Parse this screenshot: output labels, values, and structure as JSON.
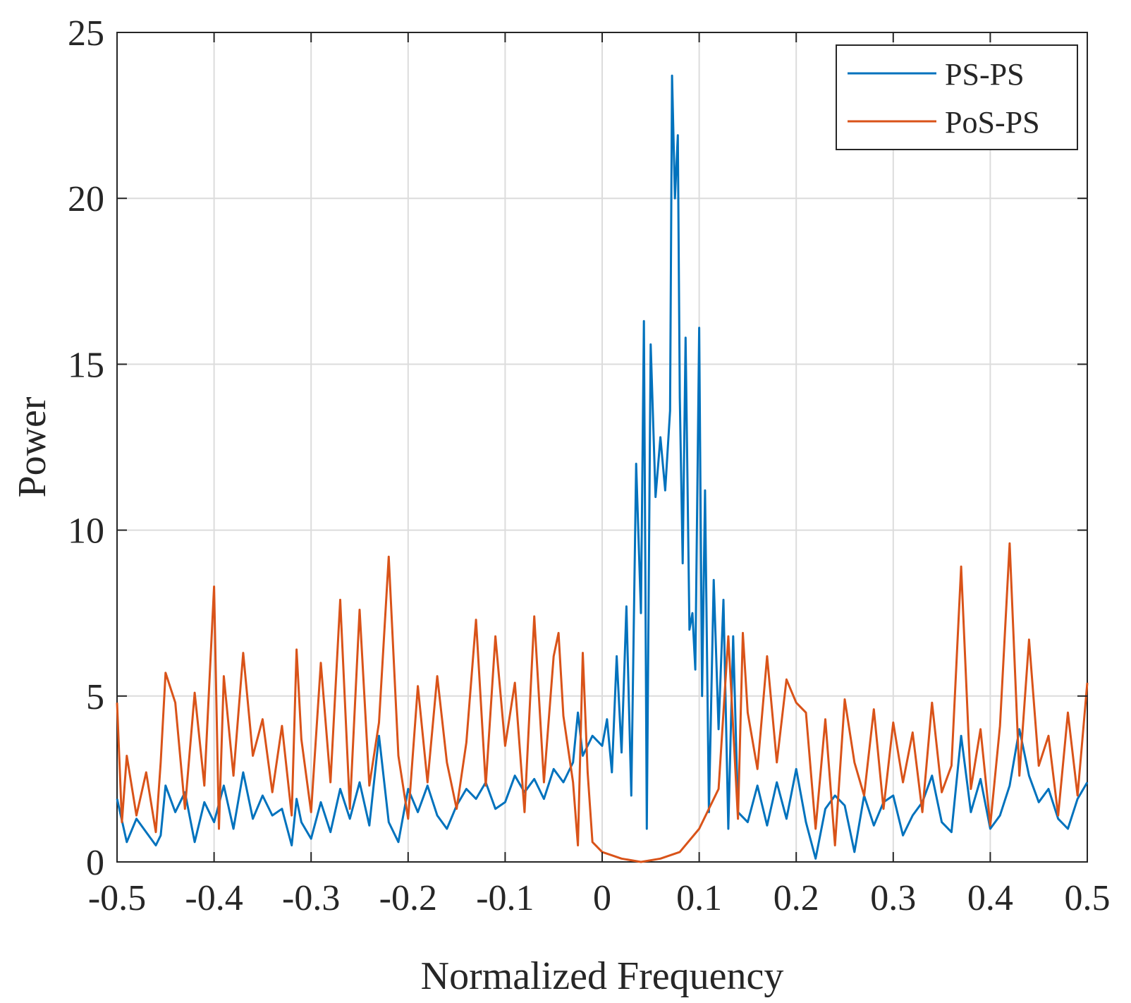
{
  "chart_data": {
    "type": "line",
    "xlabel": "Normalized Frequency",
    "ylabel": "Power",
    "xlim": [
      -0.5,
      0.5
    ],
    "ylim": [
      0,
      25
    ],
    "xticks": [
      -0.5,
      -0.4,
      -0.3,
      -0.2,
      -0.1,
      0,
      0.1,
      0.2,
      0.3,
      0.4,
      0.5
    ],
    "xtick_labels": [
      "-0.5",
      "-0.4",
      "-0.3",
      "-0.2",
      "-0.1",
      "0",
      "0.1",
      "0.2",
      "0.3",
      "0.4",
      "0.5"
    ],
    "yticks": [
      0,
      5,
      10,
      15,
      20,
      25
    ],
    "ytick_labels": [
      "0",
      "5",
      "10",
      "15",
      "20",
      "25"
    ],
    "grid": true,
    "legend_position": "top-right",
    "series": [
      {
        "name": "PS-PS",
        "color": "#0072BD",
        "x": [
          -0.5,
          -0.49,
          -0.48,
          -0.47,
          -0.46,
          -0.455,
          -0.45,
          -0.44,
          -0.43,
          -0.42,
          -0.41,
          -0.4,
          -0.39,
          -0.38,
          -0.37,
          -0.36,
          -0.35,
          -0.34,
          -0.33,
          -0.32,
          -0.315,
          -0.31,
          -0.3,
          -0.29,
          -0.28,
          -0.27,
          -0.26,
          -0.25,
          -0.24,
          -0.23,
          -0.22,
          -0.21,
          -0.2,
          -0.19,
          -0.18,
          -0.17,
          -0.16,
          -0.15,
          -0.14,
          -0.13,
          -0.12,
          -0.11,
          -0.1,
          -0.09,
          -0.08,
          -0.07,
          -0.06,
          -0.05,
          -0.04,
          -0.03,
          -0.025,
          -0.02,
          -0.01,
          0,
          0.005,
          0.01,
          0.015,
          0.02,
          0.025,
          0.03,
          0.035,
          0.04,
          0.043,
          0.046,
          0.05,
          0.055,
          0.06,
          0.065,
          0.07,
          0.072,
          0.075,
          0.078,
          0.08,
          0.083,
          0.086,
          0.09,
          0.093,
          0.096,
          0.1,
          0.103,
          0.106,
          0.11,
          0.115,
          0.12,
          0.125,
          0.13,
          0.135,
          0.14,
          0.15,
          0.16,
          0.17,
          0.18,
          0.19,
          0.2,
          0.21,
          0.22,
          0.23,
          0.24,
          0.25,
          0.26,
          0.27,
          0.28,
          0.29,
          0.3,
          0.31,
          0.32,
          0.33,
          0.34,
          0.35,
          0.36,
          0.37,
          0.38,
          0.39,
          0.4,
          0.41,
          0.42,
          0.43,
          0.44,
          0.45,
          0.46,
          0.47,
          0.48,
          0.49,
          0.5
        ],
        "y": [
          1.9,
          0.6,
          1.3,
          0.9,
          0.5,
          0.8,
          2.3,
          1.5,
          2.1,
          0.6,
          1.8,
          1.2,
          2.3,
          1.0,
          2.7,
          1.3,
          2.0,
          1.4,
          1.6,
          0.5,
          1.9,
          1.2,
          0.7,
          1.8,
          0.9,
          2.2,
          1.3,
          2.4,
          1.1,
          3.8,
          1.2,
          0.6,
          2.2,
          1.5,
          2.3,
          1.4,
          1.0,
          1.7,
          2.2,
          1.9,
          2.4,
          1.6,
          1.8,
          2.6,
          2.1,
          2.5,
          1.9,
          2.8,
          2.4,
          3.0,
          4.5,
          3.2,
          3.8,
          3.5,
          4.3,
          2.7,
          6.2,
          3.3,
          7.7,
          2.0,
          12.0,
          7.5,
          16.3,
          1.0,
          15.6,
          11.0,
          12.8,
          11.2,
          13.6,
          23.7,
          20.0,
          21.9,
          14.0,
          9.0,
          15.8,
          7.0,
          7.5,
          5.8,
          16.1,
          5.0,
          11.2,
          1.5,
          8.5,
          4.0,
          7.9,
          1.0,
          6.8,
          1.5,
          1.2,
          2.3,
          1.1,
          2.4,
          1.3,
          2.8,
          1.2,
          0.1,
          1.6,
          2.0,
          1.7,
          0.3,
          2.0,
          1.1,
          1.8,
          2.0,
          0.8,
          1.4,
          1.8,
          2.6,
          1.2,
          0.9,
          3.8,
          1.5,
          2.5,
          1.0,
          1.4,
          2.3,
          4.0,
          2.6,
          1.8,
          2.2,
          1.3,
          1.0,
          1.9,
          2.4
        ]
      },
      {
        "name": "PoS-PS",
        "color": "#D95319",
        "x": [
          -0.5,
          -0.495,
          -0.49,
          -0.48,
          -0.47,
          -0.46,
          -0.455,
          -0.45,
          -0.44,
          -0.43,
          -0.42,
          -0.41,
          -0.4,
          -0.395,
          -0.39,
          -0.38,
          -0.37,
          -0.36,
          -0.35,
          -0.34,
          -0.33,
          -0.32,
          -0.315,
          -0.31,
          -0.3,
          -0.29,
          -0.28,
          -0.27,
          -0.26,
          -0.25,
          -0.24,
          -0.23,
          -0.22,
          -0.21,
          -0.2,
          -0.19,
          -0.18,
          -0.17,
          -0.16,
          -0.15,
          -0.14,
          -0.13,
          -0.12,
          -0.11,
          -0.1,
          -0.09,
          -0.08,
          -0.07,
          -0.06,
          -0.05,
          -0.045,
          -0.04,
          -0.03,
          -0.025,
          -0.02,
          -0.015,
          -0.01,
          0,
          0.02,
          0.04,
          0.06,
          0.08,
          0.1,
          0.12,
          0.13,
          0.14,
          0.145,
          0.15,
          0.16,
          0.17,
          0.18,
          0.19,
          0.2,
          0.21,
          0.22,
          0.23,
          0.24,
          0.25,
          0.26,
          0.27,
          0.28,
          0.29,
          0.3,
          0.31,
          0.32,
          0.33,
          0.34,
          0.35,
          0.36,
          0.37,
          0.38,
          0.39,
          0.4,
          0.41,
          0.42,
          0.43,
          0.44,
          0.45,
          0.46,
          0.47,
          0.48,
          0.49,
          0.5
        ],
        "y": [
          4.8,
          1.2,
          3.2,
          1.4,
          2.7,
          0.9,
          3.0,
          5.7,
          4.8,
          1.6,
          5.1,
          2.3,
          8.3,
          1.0,
          5.6,
          2.6,
          6.3,
          3.2,
          4.3,
          2.1,
          4.1,
          1.4,
          6.4,
          3.7,
          1.5,
          6.0,
          2.4,
          7.9,
          1.6,
          7.6,
          2.3,
          4.2,
          9.2,
          3.2,
          1.3,
          5.3,
          2.4,
          5.6,
          3.0,
          1.6,
          3.6,
          7.3,
          2.3,
          6.8,
          3.5,
          5.4,
          1.5,
          7.4,
          2.4,
          6.2,
          6.9,
          4.4,
          2.4,
          0.5,
          6.3,
          2.7,
          0.6,
          0.3,
          0.1,
          0.0,
          0.1,
          0.3,
          1.0,
          2.2,
          6.8,
          1.3,
          6.9,
          4.5,
          2.8,
          6.2,
          3.0,
          5.5,
          4.8,
          4.5,
          1.0,
          4.3,
          0.5,
          4.9,
          3.0,
          2.0,
          4.6,
          1.6,
          4.2,
          2.4,
          3.9,
          1.5,
          4.8,
          2.1,
          2.9,
          8.9,
          2.2,
          4.0,
          1.1,
          4.1,
          9.6,
          2.6,
          6.7,
          2.9,
          3.8,
          1.4,
          4.5,
          2.0,
          5.4
        ]
      }
    ]
  }
}
